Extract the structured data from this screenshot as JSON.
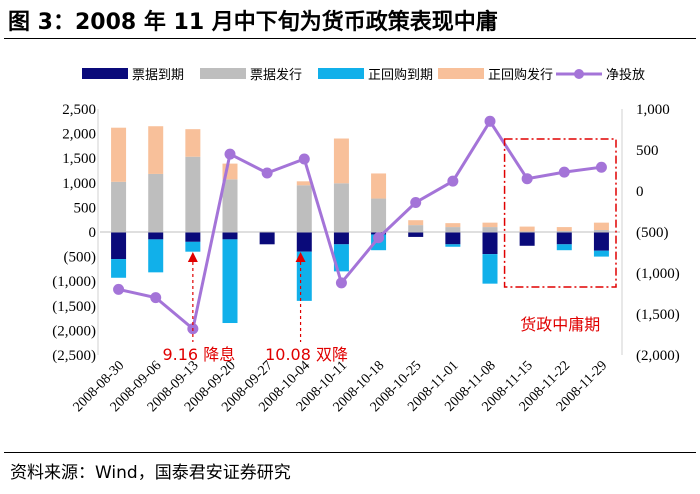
{
  "figure": {
    "title": "图 3：2008 年 11 月中下旬为货币政策表现中庸",
    "source": "资料来源：Wind，国泰君安证券研究"
  },
  "chart_data": {
    "type": "bar+line",
    "categories": [
      "2008-08-30",
      "2008-09-06",
      "2008-09-13",
      "2008-09-20",
      "2008-09-27",
      "2008-10-04",
      "2008-10-11",
      "2008-10-18",
      "2008-10-25",
      "2008-11-01",
      "2008-11-08",
      "2008-11-15",
      "2008-11-22",
      "2008-11-29"
    ],
    "series": [
      {
        "name": "票据到期",
        "kind": "bar",
        "axis": "left",
        "color": "#0a0a7a",
        "values": [
          -550,
          -150,
          -200,
          -150,
          -250,
          -400,
          -250,
          -50,
          -100,
          -250,
          -450,
          -280,
          -250,
          -380
        ]
      },
      {
        "name": "票据发行",
        "kind": "bar",
        "axis": "left",
        "color": "#bebebe",
        "values": [
          1020,
          1180,
          1530,
          1070,
          0,
          950,
          990,
          680,
          140,
          100,
          100,
          0,
          20,
          40
        ]
      },
      {
        "name": "正回购到期",
        "kind": "bar",
        "axis": "left",
        "color": "#11b0ea",
        "values": [
          -380,
          -670,
          -200,
          -1700,
          0,
          -1000,
          -550,
          -320,
          0,
          -50,
          -600,
          0,
          -120,
          -120
        ]
      },
      {
        "name": "正回购发行",
        "kind": "bar",
        "axis": "left",
        "color": "#f8c09a",
        "values": [
          1100,
          970,
          560,
          320,
          0,
          80,
          910,
          510,
          100,
          80,
          90,
          110,
          80,
          150
        ]
      },
      {
        "name": "净投放",
        "kind": "line",
        "axis": "right",
        "color": "#a474d8",
        "values": [
          -1200,
          -1300,
          -1680,
          450,
          220,
          390,
          -1120,
          -570,
          -140,
          120,
          850,
          150,
          230,
          290
        ]
      }
    ],
    "left_axis": {
      "min": -2500,
      "max": 2500,
      "step": 500,
      "ticks": [
        "(2,500)",
        "(2,000)",
        "(1,500)",
        "(1,000)",
        "(500)",
        "0",
        "500",
        "1,000",
        "1,500",
        "2,000",
        "2,500"
      ]
    },
    "right_axis": {
      "min": -2000,
      "max": 1000,
      "step": 500,
      "ticks": [
        "(2,000)",
        "(1,500)",
        "(1,000)",
        "(500)",
        "0",
        "500",
        "1,000"
      ]
    },
    "legend": {
      "position": "top"
    },
    "annotations": [
      {
        "text": "9.16 降息",
        "category_index": 2.5,
        "marker": "up-arrow"
      },
      {
        "text": "10.08 双降",
        "category_index": 5.4,
        "marker": "up-arrow"
      },
      {
        "text": "货政中庸期",
        "category_range": [
          11,
          13
        ],
        "box": "dash-dot"
      }
    ]
  }
}
